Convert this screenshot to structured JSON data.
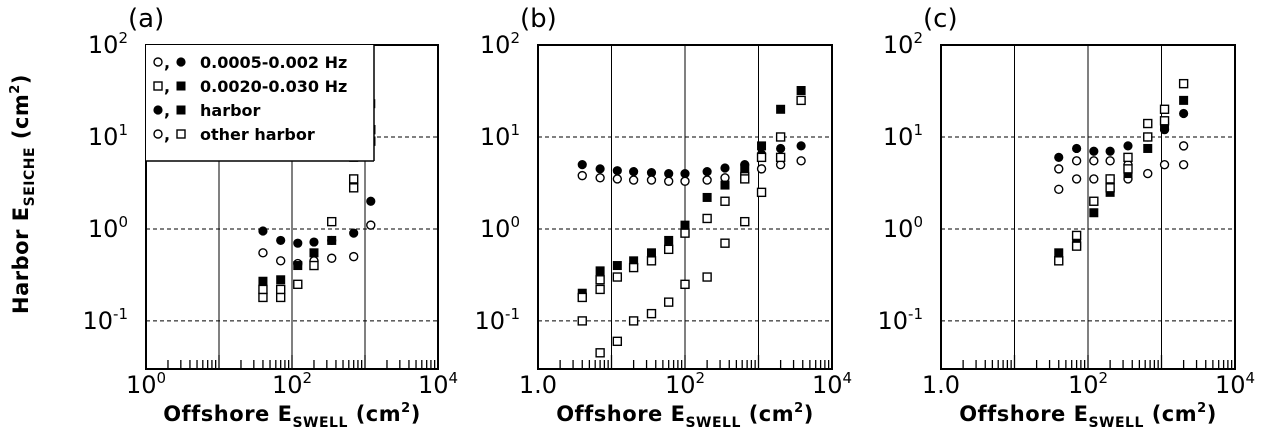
{
  "figure": {
    "ylabel": {
      "main": "Harbor E",
      "sub": "SEICHE",
      "unit": " (cm",
      "sup": "2",
      "close": ")"
    },
    "xlabel": {
      "main": "Offshore E",
      "sub": "SWELL",
      "unit": " (cm",
      "sup": "2",
      "close": ")"
    },
    "legend": [
      {
        "symbols": "○, ●",
        "text": "0.0005-0.002  Hz"
      },
      {
        "symbols": "□, ■",
        "text": "0.0020-0.030  Hz"
      },
      {
        "symbols": "●, ■",
        "text": "harbor"
      },
      {
        "symbols": "○, □",
        "text": "other harbor"
      }
    ]
  },
  "chart_data": [
    {
      "panel": "(a)",
      "type": "scatter",
      "xscale": "log",
      "yscale": "log",
      "xlim": [
        1,
        10000
      ],
      "ylim": [
        0.03,
        100
      ],
      "xticks": [
        {
          "base": "10",
          "exp": "0"
        },
        {
          "base": "10",
          "exp": "2"
        },
        {
          "base": "10",
          "exp": "4"
        }
      ],
      "yticks": [
        {
          "base": "10",
          "exp": "-1"
        },
        {
          "base": "10",
          "exp": "0"
        },
        {
          "base": "10",
          "exp": "1"
        },
        {
          "base": "10",
          "exp": "2"
        }
      ],
      "series": [
        {
          "name": "0.0005-0.002 Hz harbor",
          "marker": "filled-circle",
          "x": [
            40,
            70,
            120,
            200,
            350,
            700,
            1200
          ],
          "y": [
            0.95,
            0.75,
            0.7,
            0.72,
            0.75,
            0.9,
            2.0
          ]
        },
        {
          "name": "0.0005-0.002 Hz other harbor",
          "marker": "open-circle",
          "x": [
            40,
            70,
            120,
            200,
            350,
            700,
            1200
          ],
          "y": [
            0.55,
            0.45,
            0.42,
            0.45,
            0.48,
            0.5,
            1.1
          ]
        },
        {
          "name": "0.0020-0.030 Hz harbor",
          "marker": "filled-square",
          "x": [
            40,
            70,
            120,
            200,
            350,
            700,
            1200
          ],
          "y": [
            0.27,
            0.28,
            0.4,
            0.55,
            0.75,
            6.0,
            23
          ]
        },
        {
          "name": "0.0020-0.030 Hz other harbor",
          "marker": "open-square",
          "x": [
            40,
            40,
            70,
            70,
            120,
            200,
            350,
            700,
            700,
            1200,
            1200
          ],
          "y": [
            0.18,
            0.22,
            0.18,
            0.22,
            0.25,
            0.4,
            1.2,
            2.8,
            3.5,
            9,
            12
          ]
        }
      ]
    },
    {
      "panel": "(b)",
      "type": "scatter",
      "xscale": "log",
      "yscale": "log",
      "xlim": [
        1,
        10000
      ],
      "ylim": [
        0.03,
        100
      ],
      "xticks": [
        {
          "base": "1.0",
          "exp": ""
        },
        {
          "base": "10",
          "exp": "2"
        },
        {
          "base": "10",
          "exp": "4"
        }
      ],
      "yticks": [
        {
          "base": "10",
          "exp": "-1"
        },
        {
          "base": "10",
          "exp": "0"
        },
        {
          "base": "10",
          "exp": "1"
        },
        {
          "base": "10",
          "exp": "2"
        }
      ],
      "series": [
        {
          "name": "0.0005-0.002 Hz harbor",
          "marker": "filled-circle",
          "x": [
            4,
            7,
            12,
            20,
            35,
            60,
            100,
            200,
            350,
            650,
            1100,
            2000,
            3800
          ],
          "y": [
            5,
            4.5,
            4.3,
            4.2,
            4.1,
            4.0,
            4.0,
            4.2,
            4.6,
            5,
            6.5,
            7.5,
            8
          ]
        },
        {
          "name": "0.0005-0.002 Hz other harbor",
          "marker": "open-circle",
          "x": [
            4,
            7,
            12,
            20,
            35,
            60,
            100,
            200,
            350,
            650,
            1100,
            2000,
            3800
          ],
          "y": [
            3.8,
            3.6,
            3.5,
            3.4,
            3.4,
            3.3,
            3.3,
            3.4,
            3.6,
            4,
            4.5,
            5,
            5.5
          ]
        },
        {
          "name": "0.0020-0.030 Hz harbor",
          "marker": "filled-square",
          "x": [
            4,
            7,
            12,
            20,
            35,
            60,
            100,
            200,
            350,
            650,
            1100,
            2000,
            3800
          ],
          "y": [
            0.2,
            0.35,
            0.4,
            0.45,
            0.55,
            0.75,
            1.1,
            2.2,
            3.0,
            4.5,
            8,
            20,
            32
          ]
        },
        {
          "name": "0.0020-0.030 Hz other harbor",
          "marker": "open-square",
          "x": [
            4,
            4,
            7,
            7,
            7,
            12,
            12,
            20,
            20,
            35,
            35,
            60,
            60,
            100,
            100,
            200,
            200,
            350,
            350,
            650,
            650,
            1100,
            1100,
            2000,
            2000,
            3800
          ],
          "y": [
            0.18,
            0.1,
            0.28,
            0.22,
            0.045,
            0.3,
            0.06,
            0.38,
            0.1,
            0.45,
            0.12,
            0.6,
            0.16,
            0.9,
            0.25,
            1.3,
            0.3,
            2.0,
            0.7,
            3.5,
            1.2,
            6,
            2.5,
            10,
            6,
            25
          ]
        }
      ]
    },
    {
      "panel": "(c)",
      "type": "scatter",
      "xscale": "log",
      "yscale": "log",
      "xlim": [
        1,
        10000
      ],
      "ylim": [
        0.03,
        100
      ],
      "xticks": [
        {
          "base": "1.0",
          "exp": ""
        },
        {
          "base": "10",
          "exp": "2"
        },
        {
          "base": "10",
          "exp": "4"
        }
      ],
      "yticks": [
        {
          "base": "10",
          "exp": "-1"
        },
        {
          "base": "10",
          "exp": "0"
        },
        {
          "base": "10",
          "exp": "1"
        },
        {
          "base": "10",
          "exp": "2"
        }
      ],
      "series": [
        {
          "name": "0.0005-0.002 Hz harbor",
          "marker": "filled-circle",
          "x": [
            40,
            70,
            120,
            200,
            350,
            650,
            1100,
            2000
          ],
          "y": [
            6,
            7.5,
            7,
            7,
            8,
            10,
            12,
            18
          ]
        },
        {
          "name": "0.0005-0.002 Hz other harbor",
          "marker": "open-circle",
          "x": [
            40,
            40,
            70,
            70,
            120,
            120,
            200,
            200,
            350,
            350,
            650,
            1100,
            2000,
            2000
          ],
          "y": [
            4.5,
            2.7,
            5.5,
            3.5,
            5.5,
            3.5,
            5.5,
            3.5,
            5,
            3.5,
            4,
            5,
            5,
            8
          ]
        },
        {
          "name": "0.0020-0.030 Hz harbor",
          "marker": "filled-square",
          "x": [
            40,
            70,
            120,
            200,
            350,
            650,
            1100,
            2000
          ],
          "y": [
            0.55,
            0.7,
            1.5,
            2.5,
            4.0,
            7.5,
            13,
            25
          ]
        },
        {
          "name": "0.0020-0.030 Hz other harbor",
          "marker": "open-square",
          "x": [
            40,
            70,
            70,
            120,
            200,
            200,
            350,
            350,
            650,
            650,
            1100,
            1100,
            2000
          ],
          "y": [
            0.45,
            0.65,
            0.85,
            2.0,
            3.5,
            2.8,
            6,
            4.5,
            10,
            14,
            15,
            20,
            38
          ]
        }
      ]
    }
  ]
}
